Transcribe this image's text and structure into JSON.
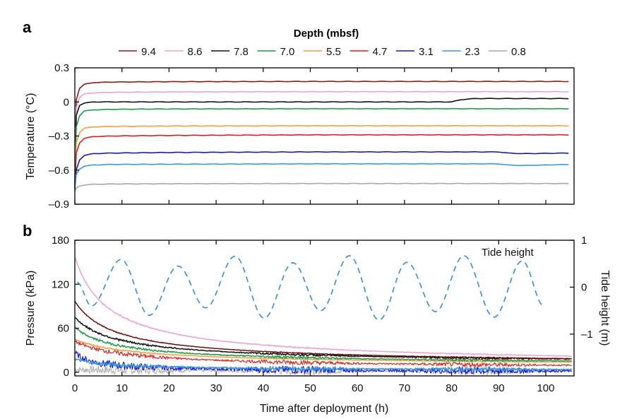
{
  "chart_data": [
    {
      "panel": "a",
      "type": "line",
      "title": "",
      "legend_title": "Depth (mbsf)",
      "legend_placement": "top-center",
      "xlabel": "",
      "ylabel": "Temperature (°C)",
      "xlim": [
        0,
        106
      ],
      "ylim": [
        -0.9,
        0.3
      ],
      "xticks": [
        0,
        10,
        20,
        30,
        40,
        50,
        60,
        70,
        80,
        90,
        100
      ],
      "xtick_labels_shown": false,
      "yticks": [
        0.3,
        0,
        -0.3,
        -0.6,
        -0.9
      ],
      "ytick_labels": [
        "0.3",
        "0",
        "–0.3",
        "–0.6",
        "–0.9"
      ],
      "grid": false,
      "series": [
        {
          "name": "9.4",
          "color": "#8b1a1a",
          "x": [
            0,
            0.3,
            1,
            2,
            4,
            8,
            20,
            50,
            105
          ],
          "values": [
            -0.72,
            0.02,
            0.12,
            0.155,
            0.17,
            0.175,
            0.178,
            0.18,
            0.18
          ]
        },
        {
          "name": "8.6",
          "color": "#e8a5cf",
          "x": [
            0,
            0.3,
            1,
            2,
            4,
            8,
            20,
            50,
            105
          ],
          "values": [
            -0.7,
            -0.05,
            0.04,
            0.07,
            0.08,
            0.085,
            0.088,
            0.09,
            0.09
          ]
        },
        {
          "name": "7.8",
          "color": "#111111",
          "x": [
            0,
            0.3,
            1,
            2,
            4,
            8,
            20,
            50,
            80,
            82,
            85,
            105
          ],
          "values": [
            -0.75,
            -0.12,
            -0.03,
            -0.01,
            0.0,
            0.0,
            0.0,
            0.0,
            0.0,
            0.02,
            0.03,
            0.03
          ]
        },
        {
          "name": "7.0",
          "color": "#1f9a4a",
          "x": [
            0,
            0.3,
            1,
            2,
            4,
            8,
            20,
            50,
            105
          ],
          "values": [
            -0.74,
            -0.22,
            -0.12,
            -0.08,
            -0.07,
            -0.065,
            -0.062,
            -0.06,
            -0.06
          ]
        },
        {
          "name": "5.5",
          "color": "#f0a040",
          "x": [
            0,
            0.3,
            1,
            2,
            4,
            8,
            20,
            50,
            105
          ],
          "values": [
            -0.75,
            -0.36,
            -0.27,
            -0.23,
            -0.22,
            -0.215,
            -0.212,
            -0.21,
            -0.21
          ]
        },
        {
          "name": "4.7",
          "color": "#d42020",
          "x": [
            0,
            0.3,
            1,
            2,
            4,
            8,
            20,
            50,
            105
          ],
          "values": [
            -0.76,
            -0.45,
            -0.36,
            -0.32,
            -0.305,
            -0.3,
            -0.295,
            -0.29,
            -0.29
          ]
        },
        {
          "name": "3.1",
          "color": "#1a1ab0",
          "x": [
            0,
            0.3,
            1,
            2,
            4,
            8,
            20,
            50,
            90,
            92,
            95,
            105
          ],
          "values": [
            -0.77,
            -0.6,
            -0.51,
            -0.47,
            -0.455,
            -0.45,
            -0.445,
            -0.44,
            -0.44,
            -0.45,
            -0.455,
            -0.45
          ]
        },
        {
          "name": "2.3",
          "color": "#3a9ad9",
          "x": [
            0,
            0.3,
            1,
            2,
            4,
            8,
            20,
            50,
            90,
            92,
            95,
            105
          ],
          "values": [
            -0.77,
            -0.64,
            -0.59,
            -0.565,
            -0.555,
            -0.55,
            -0.548,
            -0.545,
            -0.545,
            -0.555,
            -0.56,
            -0.55
          ]
        },
        {
          "name": "0.8",
          "color": "#a8a8a8",
          "x": [
            0,
            0.3,
            1,
            2,
            4,
            8,
            20,
            50,
            105
          ],
          "values": [
            -0.79,
            -0.76,
            -0.74,
            -0.73,
            -0.725,
            -0.722,
            -0.72,
            -0.718,
            -0.718
          ]
        }
      ]
    },
    {
      "panel": "b",
      "type": "line",
      "title": "",
      "xlabel": "Time after deployment (h)",
      "ylabel": "Pressure (kPa)",
      "y2label": "Tide height (m)",
      "annotation": "Tide height",
      "xlim": [
        0,
        106
      ],
      "ylim": [
        -5,
        180
      ],
      "y2lim": [
        -1.89,
        1
      ],
      "xticks": [
        0,
        10,
        20,
        30,
        40,
        50,
        60,
        70,
        80,
        90,
        100
      ],
      "xtick_labels": [
        "0",
        "10",
        "20",
        "30",
        "40",
        "50",
        "60",
        "70",
        "80",
        "90",
        "100"
      ],
      "yticks": [
        180,
        120,
        60,
        0
      ],
      "ytick_labels": [
        "180",
        "120",
        "60",
        "0"
      ],
      "y2ticks": [
        1,
        0,
        -1
      ],
      "y2tick_labels": [
        "1",
        "0",
        "–1"
      ],
      "grid": false,
      "series": [
        {
          "name": "8.6",
          "color": "#e8a5cf",
          "start": 158,
          "end": 6,
          "tau": 22,
          "noise": 0.6
        },
        {
          "name": "9.4",
          "color": "#6b1010",
          "start": 97,
          "end": 8,
          "tau": 26,
          "noise": 0.4
        },
        {
          "name": "7.8",
          "color": "#111111",
          "start": 75,
          "end": 10,
          "tau": 28,
          "noise": 0.9
        },
        {
          "name": "7.0",
          "color": "#1f9a4a",
          "start": 61,
          "end": 9,
          "tau": 28,
          "noise": 1.0
        },
        {
          "name": "5.5",
          "color": "#f0a040",
          "start": 45,
          "end": 8,
          "tau": 40,
          "noise": 0.5
        },
        {
          "name": "4.7",
          "color": "#e01818",
          "start": 42,
          "end": 4,
          "tau": 35,
          "noise": 2.0
        },
        {
          "name": "2.3",
          "color": "#3a9ad9",
          "start": 18,
          "end": 2,
          "tau": 25,
          "noise": 1.5
        },
        {
          "name": "3.1",
          "color": "#1010e0",
          "start": 27,
          "end": 0,
          "tau": 12,
          "noise": 3.5
        },
        {
          "name": "0.8",
          "color": "#b0b0b0",
          "start": 4,
          "end": 2,
          "tau": 20,
          "noise": 4.0
        }
      ],
      "tide": {
        "name": "Tide height",
        "color": "#3a8fd0",
        "style": "dashed",
        "axis": "right",
        "x": [
          0.5,
          3.5,
          9.8,
          15.8,
          21.9,
          27.8,
          34.0,
          40.2,
          46.3,
          52.2,
          58.3,
          64.6,
          70.5,
          76.6,
          82.6,
          89.0,
          95.0,
          99.6
        ],
        "values": [
          0.1,
          -0.4,
          0.59,
          -0.6,
          0.45,
          -0.44,
          0.66,
          -0.66,
          0.52,
          -0.5,
          0.67,
          -0.7,
          0.53,
          -0.52,
          0.67,
          -0.64,
          0.56,
          -0.4
        ]
      }
    }
  ],
  "labels": {
    "panel_a": "a",
    "panel_b": "b"
  }
}
